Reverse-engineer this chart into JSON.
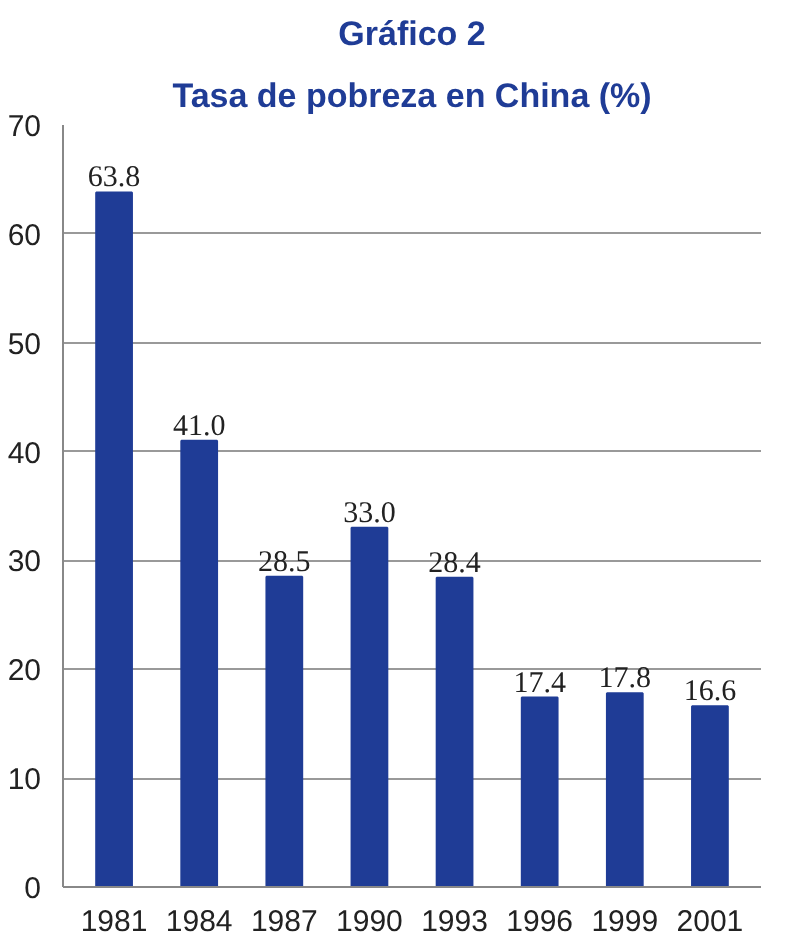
{
  "chart_data": {
    "type": "bar",
    "title": "Gráfico 2",
    "subtitle": "Tasa de pobreza en China (%)",
    "categories": [
      "1981",
      "1984",
      "1987",
      "1990",
      "1993",
      "1996",
      "1999",
      "2001"
    ],
    "values": [
      63.8,
      41.0,
      28.5,
      33.0,
      28.4,
      17.4,
      17.8,
      16.6
    ],
    "value_labels": [
      "63.8",
      "41.0",
      "28.5",
      "33.0",
      "28.4",
      "17.4",
      "17.8",
      "16.6"
    ],
    "color": "#1f3c96",
    "ylim": [
      0,
      70
    ],
    "yticks": [
      0,
      10,
      20,
      30,
      40,
      50,
      60,
      70
    ],
    "grid": "y"
  }
}
